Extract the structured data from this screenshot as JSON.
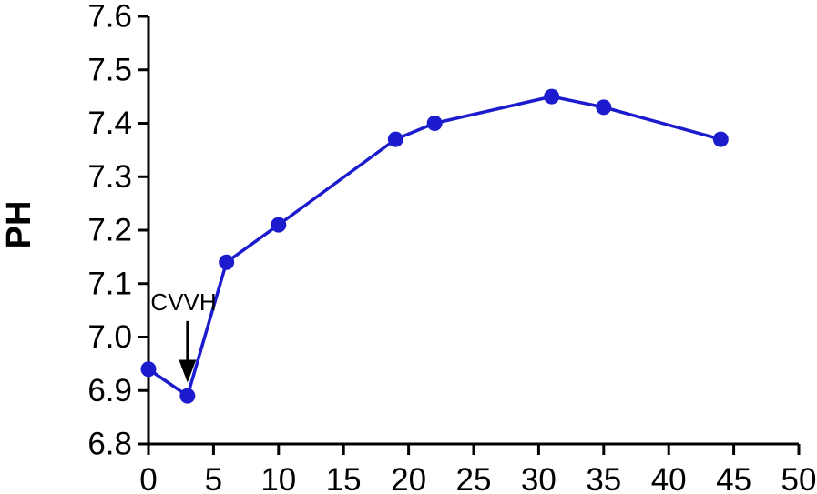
{
  "figure": {
    "background": "#ffffff"
  },
  "chart_data": {
    "type": "line",
    "title": "",
    "xlabel": "",
    "ylabel": "PH",
    "x": [
      0,
      3,
      6,
      10,
      19,
      22,
      31,
      35,
      44
    ],
    "y": [
      6.94,
      6.89,
      7.14,
      7.21,
      7.37,
      7.4,
      7.45,
      7.43,
      7.37
    ],
    "xlim": [
      0,
      50
    ],
    "ylim": [
      6.8,
      7.6
    ],
    "x_tick_labels": [
      "0",
      "5",
      "10",
      "15",
      "20",
      "25",
      "30",
      "35",
      "40",
      "45",
      "50"
    ],
    "y_tick_labels": [
      "6.8",
      "6.9",
      "7.0",
      "7.1",
      "7.2",
      "7.3",
      "7.4",
      "7.5",
      "7.6"
    ],
    "grid": false,
    "legend": "none",
    "line_color": "#1c1cce",
    "marker_color": "#1c1cce",
    "axis_color": "#000000",
    "annotation": {
      "text": "CVVH",
      "x_value": 3,
      "label_x_value": 2.7,
      "label_ph": 7.05,
      "arrow_from_ph": 7.03,
      "arrow_to_ph": 6.915
    }
  }
}
